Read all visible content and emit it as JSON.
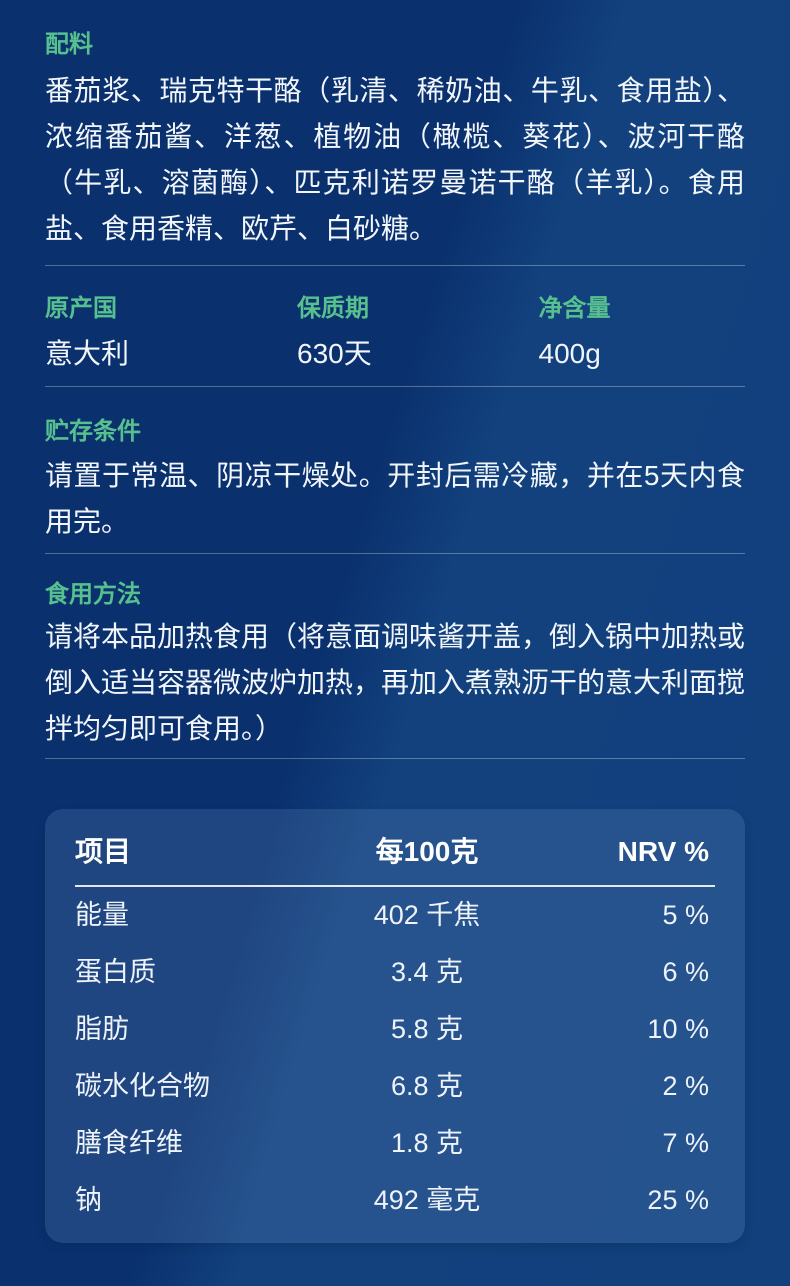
{
  "theme": {
    "bg_dark": "#0a316e",
    "bg_light": "#12417e",
    "card_bg": "rgba(160,195,240,0.14)",
    "accent_green": "#57c08f",
    "text_white": "#f2f6fb"
  },
  "sections": {
    "ingredients": {
      "heading": "配料",
      "body": "番茄浆、瑞克特干酪（乳清、稀奶油、牛乳、食用盐）、浓缩番茄酱、洋葱、植物油（橄榄、葵花）、波河干酪（牛乳、溶菌酶）、匹克利诺罗曼诺干酪（羊乳）。食用盐、食用香精、欧芹、白砂糖。"
    },
    "info": {
      "items": [
        {
          "label": "原产国",
          "value": "意大利"
        },
        {
          "label": "保质期",
          "value": "630天"
        },
        {
          "label": "净含量",
          "value": "400g"
        }
      ]
    },
    "storage": {
      "heading": "贮存条件",
      "body": "请置于常温、阴凉干燥处。开封后需冷藏，并在5天内食用完。"
    },
    "usage": {
      "heading": "食用方法",
      "body": "请将本品加热食用（将意面调味酱开盖，倒入锅中加热或倒入适当容器微波炉加热，再加入煮熟沥干的意大利面搅拌均匀即可食用。）"
    }
  },
  "nutrition": {
    "headers": [
      "项目",
      "每100克",
      "NRV %"
    ],
    "rows": [
      {
        "name": "能量",
        "amount": "402 千焦",
        "nrv": "5 %"
      },
      {
        "name": "蛋白质",
        "amount": "3.4 克",
        "nrv": "6 %"
      },
      {
        "name": "脂肪",
        "amount": "5.8 克",
        "nrv": "10 %"
      },
      {
        "name": "碳水化合物",
        "amount": "6.8 克",
        "nrv": "2 %"
      },
      {
        "name": "膳食纤维",
        "amount": "1.8 克",
        "nrv": "7 %"
      },
      {
        "name": "钠",
        "amount": "492 毫克",
        "nrv": "25 %"
      }
    ]
  }
}
